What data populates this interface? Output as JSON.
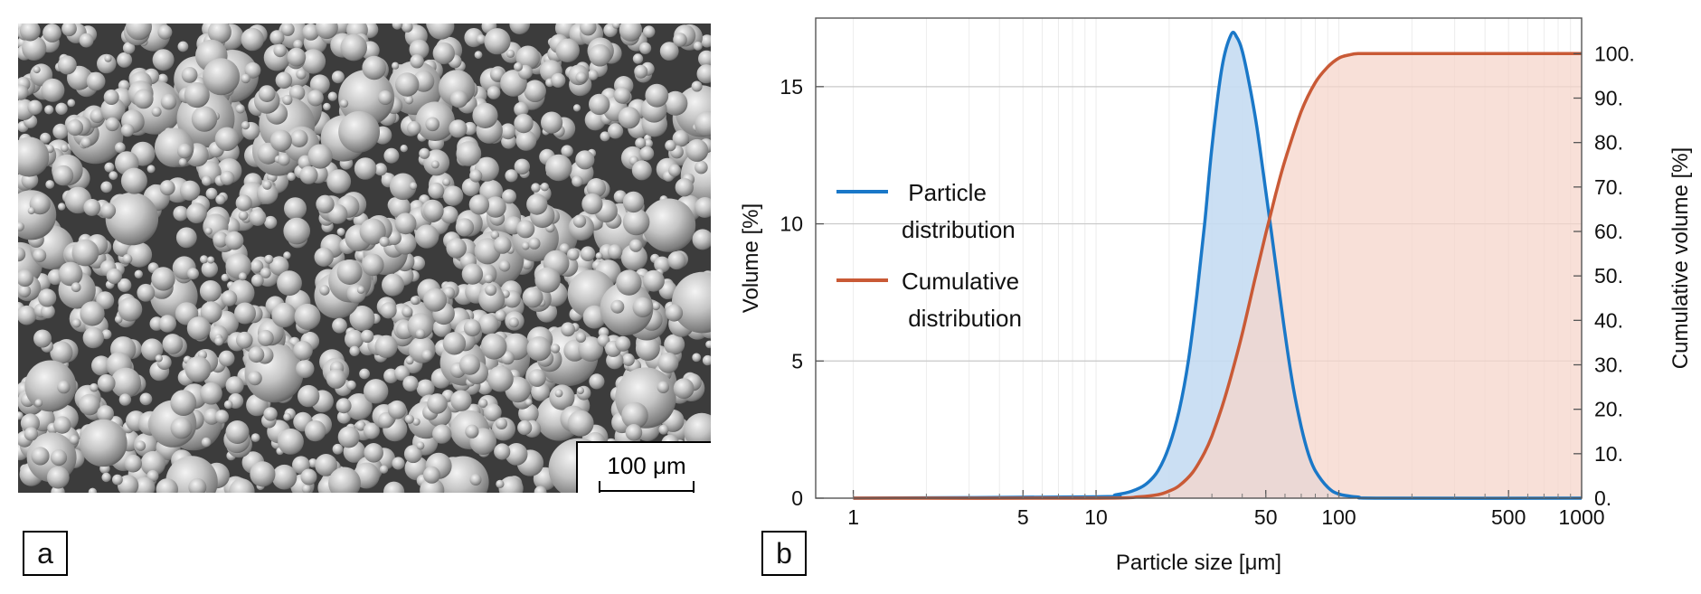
{
  "panel_a": {
    "tag": "a",
    "scale_bar_label": "100 μm",
    "scale_bar_color": "#000000"
  },
  "panel_b": {
    "tag": "b"
  },
  "chart_data": {
    "type": "area",
    "xscale": "log",
    "xlim": [
      0.7,
      1000
    ],
    "xlabel": "Particle size [μm]",
    "ylabel": "Volume [%]",
    "ylabel_right": "Cumulative volume [%]",
    "ylim": [
      0,
      17.5
    ],
    "ylim_right": [
      0,
      108
    ],
    "x_ticks": [
      1,
      5,
      10,
      50,
      100,
      500,
      1000
    ],
    "x_tick_labels": [
      "1",
      "5",
      "10",
      "50",
      "100",
      "500",
      "1000"
    ],
    "y_ticks": [
      0,
      5,
      10,
      15
    ],
    "y_tick_labels": [
      "0",
      "5",
      "10",
      "15"
    ],
    "y_right_ticks": [
      0,
      10,
      20,
      30,
      40,
      50,
      60,
      70,
      80,
      90,
      100
    ],
    "y_right_tick_labels": [
      "0.",
      "10.",
      "20.",
      "30.",
      "40.",
      "50.",
      "60.",
      "70.",
      "80.",
      "90.",
      "100."
    ],
    "gridlines_y": [
      5,
      10,
      15
    ],
    "series": [
      {
        "name": "Particle distribution",
        "legend_label_lines": [
          " Particle",
          "distribution"
        ],
        "axis": "left",
        "color": "#1a78c8",
        "fill": "#c5dcf2",
        "x": [
          1,
          10,
          12,
          14,
          16,
          18,
          20,
          22,
          24,
          26,
          28,
          30,
          33,
          36,
          38,
          40,
          43,
          46,
          50,
          55,
          60,
          65,
          70,
          75,
          80,
          90,
          100,
          120,
          150,
          1000
        ],
        "values": [
          0,
          0.05,
          0.12,
          0.25,
          0.5,
          1.0,
          1.9,
          3.2,
          5.0,
          7.4,
          10.0,
          12.8,
          15.7,
          16.9,
          16.8,
          16.3,
          15.0,
          13.5,
          11.2,
          8.5,
          6.0,
          4.0,
          2.6,
          1.6,
          1.0,
          0.4,
          0.15,
          0.04,
          0.0,
          0.0
        ]
      },
      {
        "name": "Cumulative distribution",
        "legend_label_lines": [
          "Cumulative",
          " distribution"
        ],
        "axis": "right",
        "color": "#c95a36",
        "fill": "#f5d5cb",
        "x": [
          1,
          10,
          15,
          18,
          20,
          22,
          25,
          28,
          30,
          33,
          36,
          40,
          45,
          50,
          55,
          60,
          70,
          80,
          90,
          100,
          110,
          120,
          150,
          200,
          1000
        ],
        "values": [
          0,
          0,
          0.3,
          0.8,
          1.6,
          2.8,
          5.8,
          10.3,
          14.0,
          20.5,
          27.5,
          37.0,
          49.0,
          59.5,
          68.5,
          76.0,
          87.0,
          93.5,
          97.0,
          99.0,
          99.7,
          100.0,
          100.0,
          100.0,
          100.0
        ]
      }
    ]
  }
}
